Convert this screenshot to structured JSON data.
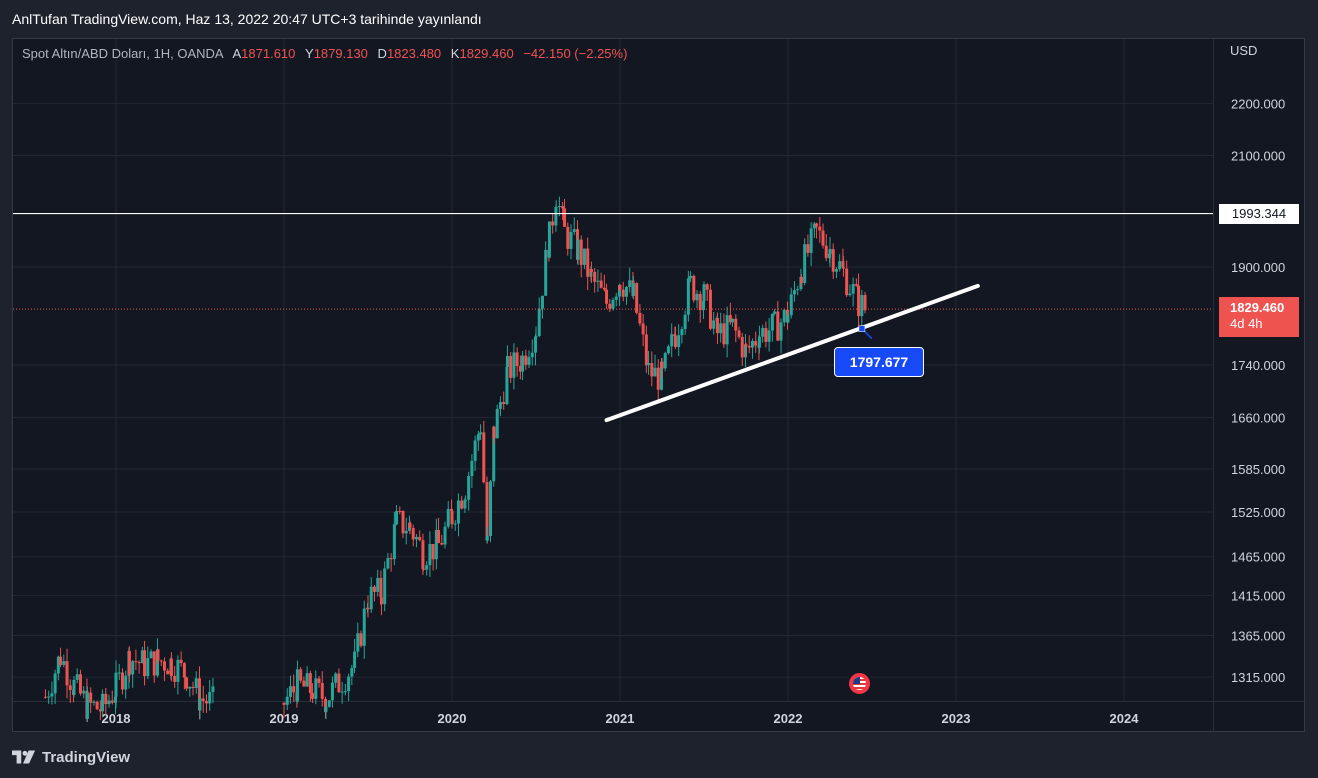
{
  "publication": "AnlTufan TradingView.com, Haz 13, 2022 20:47 UTC+3 tarihinde yayınlandı",
  "legend": {
    "symbol": "Spot Altın/ABD Doları, 1H, OANDA",
    "open_key": "A",
    "open": "1871.610",
    "high_key": "Y",
    "high": "1879.130",
    "low_key": "D",
    "low": "1823.480",
    "close_key": "K",
    "close": "1829.460",
    "change": "−42.150 (−2.25%)"
  },
  "currency": "USD",
  "hline_label": "1993.344",
  "price_label": {
    "price": "1829.460",
    "countdown": "4d 4h"
  },
  "trendline_label": "1797.677",
  "footer": {
    "brand": "TradingView"
  },
  "colors": {
    "up": "#26a69a",
    "down": "#ef5350",
    "background": "#131722",
    "trendline": "#ffffff",
    "hline": "#ffffff",
    "label_blue": "#1749f7"
  },
  "icons": {
    "economic_event": "us-flag-icon",
    "logo": "tradingview-logo-icon"
  },
  "chart_data": {
    "type": "candlestick",
    "x_tick_labels": [
      "2018",
      "2019",
      "2020",
      "2021",
      "2022",
      "2023",
      "2024"
    ],
    "y_tick_labels": [
      "2200.000",
      "2100.000",
      "1900.000",
      "1740.000",
      "1660.000",
      "1585.000",
      "1525.000",
      "1465.000",
      "1415.000",
      "1365.000",
      "1315.000"
    ],
    "y_scale": "log",
    "ylim": [
      1280,
      2280
    ],
    "xlim": [
      2017.5,
      2024.7
    ],
    "horizontal_line": {
      "price": 1993.344
    },
    "trendline": {
      "start": {
        "t": 2020.92,
        "price": 1656
      },
      "end": {
        "t": 2023.13,
        "price": 1868
      }
    },
    "last_price": 1829.46,
    "series": [
      {
        "name": "",
        "points": [
          [
            2017.58,
            1292
          ],
          [
            2017.67,
            1340
          ],
          [
            2017.75,
            1305
          ],
          [
            2017.83,
            1282
          ],
          [
            2017.92,
            1278
          ],
          [
            2018.0,
            1302
          ],
          [
            2018.08,
            1338
          ],
          [
            2018.17,
            1330
          ],
          [
            2018.25,
            1335
          ],
          [
            2018.33,
            1332
          ],
          [
            2018.42,
            1318
          ],
          [
            2018.5,
            1290
          ],
          [
            2018.58,
            1285
          ],
          [
            2019.0,
            1285
          ],
          [
            2019.08,
            1305
          ],
          [
            2019.17,
            1300
          ],
          [
            2019.25,
            1290
          ],
          [
            2019.42,
            1330
          ],
          [
            2019.5,
            1412
          ],
          [
            2019.58,
            1420
          ],
          [
            2019.67,
            1510
          ],
          [
            2019.75,
            1505
          ],
          [
            2019.83,
            1470
          ],
          [
            2019.92,
            1480
          ],
          [
            2020.0,
            1520
          ],
          [
            2020.08,
            1560
          ],
          [
            2020.17,
            1650
          ],
          [
            2020.21,
            1480
          ],
          [
            2020.25,
            1640
          ],
          [
            2020.33,
            1730
          ],
          [
            2020.42,
            1750
          ],
          [
            2020.5,
            1800
          ],
          [
            2020.58,
            1950
          ],
          [
            2020.62,
            2030
          ],
          [
            2020.67,
            1960
          ],
          [
            2020.75,
            1930
          ],
          [
            2020.83,
            1880
          ],
          [
            2020.92,
            1840
          ],
          [
            2021.0,
            1880
          ],
          [
            2021.08,
            1850
          ],
          [
            2021.17,
            1730
          ],
          [
            2021.25,
            1720
          ],
          [
            2021.33,
            1790
          ],
          [
            2021.42,
            1870
          ],
          [
            2021.5,
            1850
          ],
          [
            2021.58,
            1790
          ],
          [
            2021.67,
            1800
          ],
          [
            2021.75,
            1760
          ],
          [
            2021.83,
            1790
          ],
          [
            2021.92,
            1800
          ],
          [
            2022.0,
            1820
          ],
          [
            2022.08,
            1900
          ],
          [
            2022.17,
            1960
          ],
          [
            2022.25,
            1930
          ],
          [
            2022.33,
            1890
          ],
          [
            2022.42,
            1840
          ],
          [
            2022.46,
            1829.46
          ]
        ]
      }
    ]
  }
}
